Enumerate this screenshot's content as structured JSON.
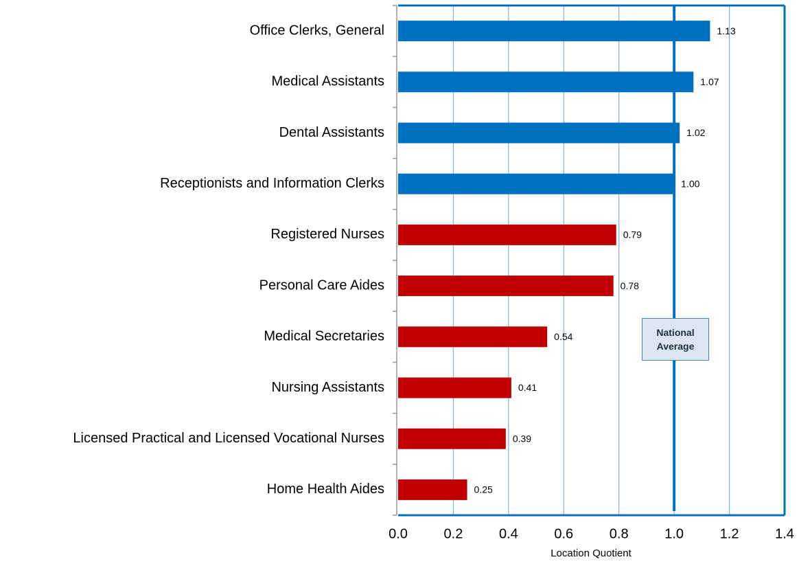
{
  "chart_data": {
    "type": "bar",
    "orientation": "horizontal",
    "categories": [
      "Office Clerks, General",
      "Medical Assistants",
      "Dental Assistants",
      "Receptionists and Information Clerks",
      "Registered Nurses",
      "Personal Care Aides",
      "Medical Secretaries",
      "Nursing Assistants",
      "Licensed Practical and Licensed Vocational Nurses",
      "Home Health Aides"
    ],
    "values": [
      1.13,
      1.07,
      1.02,
      1.0,
      0.79,
      0.78,
      0.54,
      0.41,
      0.39,
      0.25
    ],
    "value_labels": [
      "1.13",
      "1.07",
      "1.02",
      "1.00",
      "0.79",
      "0.78",
      "0.54",
      "0.41",
      "0.39",
      "0.25"
    ],
    "colors": [
      "#0070c0",
      "#0070c0",
      "#0070c0",
      "#0070c0",
      "#c00000",
      "#c00000",
      "#c00000",
      "#c00000",
      "#c00000",
      "#c00000"
    ],
    "xlim": [
      0,
      1.4
    ],
    "xticks": [
      {
        "value": 0,
        "label": "0.0"
      },
      0.2,
      0.4,
      0.6,
      0.8,
      {
        "value": 1,
        "label": "1.0"
      },
      1.2,
      1.4
    ],
    "xlabel": "Location Quotient",
    "grid": true,
    "reference_line": {
      "value": 1,
      "label": "National Average"
    }
  }
}
